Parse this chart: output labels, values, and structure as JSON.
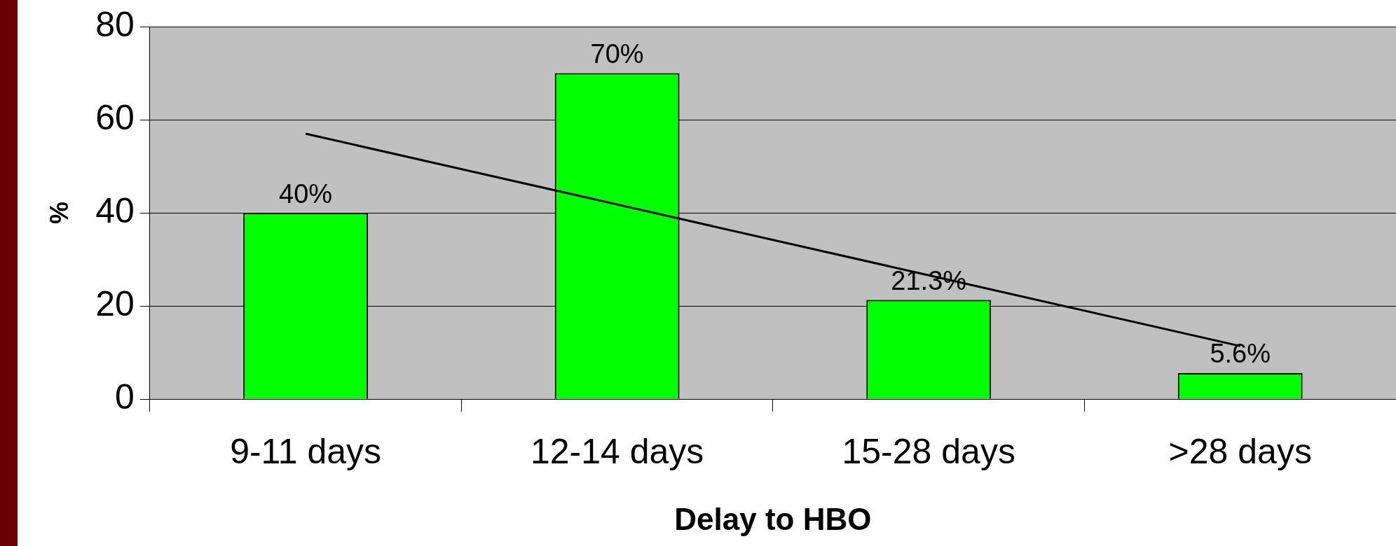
{
  "chart_data": {
    "type": "bar",
    "xlabel": "Delay to HBO",
    "ylabel": "%",
    "categories": [
      "9-11 days",
      "12-14 days",
      "15-28 days",
      ">28 days"
    ],
    "series": [
      {
        "color": "#00ff00",
        "values": [
          40,
          70,
          21.3,
          5.6
        ],
        "value_labels": [
          "40%",
          "70%",
          "21.3%",
          "5.6%"
        ]
      },
      {
        "type": "line",
        "color": "#000000",
        "x": [
          "9-11 days",
          "12-14 days",
          "15-28 days",
          ">28 days"
        ],
        "values": [
          57,
          41.8,
          26.6,
          11.4
        ],
        "marker": "none"
      }
    ],
    "ylim": [
      0,
      80
    ],
    "yticks": [
      0,
      20,
      40,
      60,
      80
    ],
    "grid": "y",
    "legend": false
  }
}
